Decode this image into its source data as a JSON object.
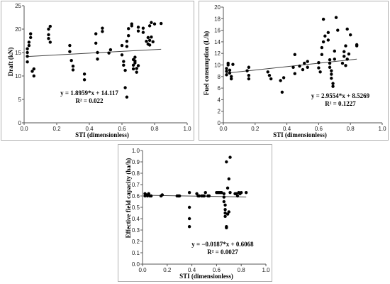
{
  "chart_data": [
    {
      "type": "scatter",
      "title": "",
      "xlabel": "STI (dimensionless)",
      "ylabel": "Draft (kN)",
      "xlim": [
        0,
        1.0
      ],
      "ylim": [
        0,
        25
      ],
      "xticks": [
        "0.0",
        "0.2",
        "0.4",
        "0.6",
        "0.8",
        "1.0"
      ],
      "yticks": [
        "0",
        "5",
        "10",
        "15",
        "20",
        "25"
      ],
      "grid": false,
      "trendline": {
        "slope": 1.8959,
        "intercept": 14.117
      },
      "equation": "y = 1.8959*x + 14.117",
      "r_squared": "R² = 0.022",
      "points": [
        [
          0.02,
          13
        ],
        [
          0.02,
          14.2
        ],
        [
          0.02,
          15
        ],
        [
          0.02,
          15.8
        ],
        [
          0.03,
          16.5
        ],
        [
          0.03,
          17.2
        ],
        [
          0.04,
          18.2
        ],
        [
          0.04,
          19
        ],
        [
          0.05,
          11
        ],
        [
          0.06,
          10
        ],
        [
          0.06,
          11.5
        ],
        [
          0.15,
          18
        ],
        [
          0.15,
          18.8
        ],
        [
          0.15,
          20
        ],
        [
          0.16,
          20.6
        ],
        [
          0.16,
          17.2
        ],
        [
          0.28,
          16.5
        ],
        [
          0.28,
          15.2
        ],
        [
          0.29,
          13.3
        ],
        [
          0.3,
          12.1
        ],
        [
          0.3,
          11.3
        ],
        [
          0.37,
          10.4
        ],
        [
          0.37,
          9.2
        ],
        [
          0.44,
          17
        ],
        [
          0.44,
          19
        ],
        [
          0.45,
          15
        ],
        [
          0.45,
          13.6
        ],
        [
          0.48,
          19.5
        ],
        [
          0.48,
          20.2
        ],
        [
          0.52,
          14.9
        ],
        [
          0.53,
          15.6
        ],
        [
          0.6,
          16.5
        ],
        [
          0.6,
          14.5
        ],
        [
          0.61,
          12.3
        ],
        [
          0.61,
          13.1
        ],
        [
          0.62,
          11.2
        ],
        [
          0.62,
          7.5
        ],
        [
          0.63,
          5.5
        ],
        [
          0.63,
          16.3
        ],
        [
          0.63,
          17.4
        ],
        [
          0.64,
          18.6
        ],
        [
          0.64,
          20.1
        ],
        [
          0.66,
          20.7
        ],
        [
          0.66,
          21.1
        ],
        [
          0.67,
          13.5
        ],
        [
          0.67,
          12.3
        ],
        [
          0.67,
          11.5
        ],
        [
          0.68,
          14
        ],
        [
          0.68,
          13.2
        ],
        [
          0.68,
          12.8
        ],
        [
          0.69,
          11.6
        ],
        [
          0.69,
          10.8
        ],
        [
          0.7,
          20.4
        ],
        [
          0.7,
          19.6
        ],
        [
          0.7,
          12.2
        ],
        [
          0.73,
          19.3
        ],
        [
          0.73,
          20.2
        ],
        [
          0.75,
          17.4
        ],
        [
          0.76,
          16.8
        ],
        [
          0.76,
          18.2
        ],
        [
          0.77,
          20.7
        ],
        [
          0.77,
          17.6
        ],
        [
          0.77,
          16.6
        ],
        [
          0.78,
          21.4
        ],
        [
          0.78,
          18.3
        ],
        [
          0.79,
          17.3
        ],
        [
          0.8,
          21.1
        ],
        [
          0.84,
          21.2
        ]
      ]
    },
    {
      "type": "scatter",
      "title": "",
      "xlabel": "STI (dimensionless)",
      "ylabel": "Fuel consumption  (L/h)",
      "xlim": [
        0,
        1.0
      ],
      "ylim": [
        0,
        20
      ],
      "xticks": [
        "0.0",
        "0.2",
        "0.4",
        "0.6",
        "0.8",
        "1.0"
      ],
      "yticks": [
        "0",
        "2",
        "4",
        "6",
        "8",
        "10",
        "12",
        "14",
        "16",
        "18",
        "20"
      ],
      "grid": false,
      "trendline": {
        "slope": 2.9554,
        "intercept": 8.5269
      },
      "equation": "y = 2.9554*x + 8.5269",
      "r_squared": "R² = 0.1227",
      "points": [
        [
          0.02,
          8.3
        ],
        [
          0.02,
          8.9
        ],
        [
          0.02,
          9.4
        ],
        [
          0.03,
          10
        ],
        [
          0.03,
          10.3
        ],
        [
          0.04,
          9.1
        ],
        [
          0.04,
          8.6
        ],
        [
          0.05,
          7.6
        ],
        [
          0.05,
          8
        ],
        [
          0.06,
          10.1
        ],
        [
          0.15,
          9
        ],
        [
          0.16,
          9.6
        ],
        [
          0.16,
          8.2
        ],
        [
          0.16,
          7.6
        ],
        [
          0.28,
          8.8
        ],
        [
          0.29,
          8.2
        ],
        [
          0.3,
          7.6
        ],
        [
          0.36,
          7.3
        ],
        [
          0.37,
          5.3
        ],
        [
          0.38,
          7.8
        ],
        [
          0.44,
          9.6
        ],
        [
          0.45,
          8.5
        ],
        [
          0.45,
          11.8
        ],
        [
          0.48,
          9.8
        ],
        [
          0.5,
          9.2
        ],
        [
          0.51,
          10.3
        ],
        [
          0.53,
          10.6
        ],
        [
          0.53,
          9.6
        ],
        [
          0.6,
          10.4
        ],
        [
          0.6,
          9.5
        ],
        [
          0.61,
          8.8
        ],
        [
          0.62,
          11.8
        ],
        [
          0.62,
          13
        ],
        [
          0.63,
          14
        ],
        [
          0.63,
          17.9
        ],
        [
          0.64,
          15
        ],
        [
          0.66,
          15.6
        ],
        [
          0.66,
          14.3
        ],
        [
          0.67,
          10.9
        ],
        [
          0.67,
          10.3
        ],
        [
          0.67,
          9.6
        ],
        [
          0.68,
          9
        ],
        [
          0.68,
          8.4
        ],
        [
          0.68,
          7.7
        ],
        [
          0.69,
          6.8
        ],
        [
          0.69,
          6.3
        ],
        [
          0.7,
          11
        ],
        [
          0.7,
          12.4
        ],
        [
          0.71,
          18.2
        ],
        [
          0.72,
          16
        ],
        [
          0.75,
          10.3
        ],
        [
          0.76,
          11.5
        ],
        [
          0.76,
          12.3
        ],
        [
          0.77,
          9.9
        ],
        [
          0.77,
          13.3
        ],
        [
          0.78,
          11
        ],
        [
          0.78,
          16.2
        ],
        [
          0.79,
          11.9
        ],
        [
          0.8,
          15.2
        ],
        [
          0.84,
          13.3
        ],
        [
          0.84,
          13.5
        ]
      ]
    },
    {
      "type": "scatter",
      "title": "",
      "xlabel": "STI (dimensionless)",
      "ylabel": "Effective field capacity (ha/h)",
      "xlim": [
        0,
        1.0
      ],
      "ylim": [
        0,
        1.0
      ],
      "xticks": [
        "0.0",
        "0.2",
        "0.4",
        "0.6",
        "0.8",
        "1.0"
      ],
      "yticks": [
        "0.0",
        "0.1",
        "0.2",
        "0.3",
        "0.4",
        "0.5",
        "0.6",
        "0.7",
        "0.8",
        "0.9",
        "1.0"
      ],
      "grid": false,
      "trendline": {
        "slope": -0.0187,
        "intercept": 0.6068
      },
      "equation": "y = −0.0187*x + 0.6068",
      "r_squared": "R² = 0.0027",
      "points": [
        [
          0.02,
          0.62
        ],
        [
          0.02,
          0.6
        ],
        [
          0.03,
          0.61
        ],
        [
          0.04,
          0.6
        ],
        [
          0.05,
          0.62
        ],
        [
          0.06,
          0.6
        ],
        [
          0.07,
          0.6
        ],
        [
          0.15,
          0.6
        ],
        [
          0.16,
          0.61
        ],
        [
          0.28,
          0.6
        ],
        [
          0.29,
          0.6
        ],
        [
          0.3,
          0.6
        ],
        [
          0.38,
          0.63
        ],
        [
          0.38,
          0.5
        ],
        [
          0.38,
          0.4
        ],
        [
          0.38,
          0.33
        ],
        [
          0.44,
          0.62
        ],
        [
          0.45,
          0.6
        ],
        [
          0.46,
          0.6
        ],
        [
          0.48,
          0.6
        ],
        [
          0.49,
          0.6
        ],
        [
          0.5,
          0.6
        ],
        [
          0.51,
          0.63
        ],
        [
          0.53,
          0.6
        ],
        [
          0.54,
          0.6
        ],
        [
          0.6,
          0.63
        ],
        [
          0.61,
          0.63
        ],
        [
          0.62,
          0.63
        ],
        [
          0.63,
          0.63
        ],
        [
          0.64,
          0.63
        ],
        [
          0.66,
          0.62
        ],
        [
          0.66,
          0.59
        ],
        [
          0.66,
          0.55
        ],
        [
          0.67,
          0.52
        ],
        [
          0.67,
          0.48
        ],
        [
          0.67,
          0.45
        ],
        [
          0.67,
          0.42
        ],
        [
          0.68,
          0.33
        ],
        [
          0.68,
          0.32
        ],
        [
          0.68,
          0.9
        ],
        [
          0.69,
          0.67
        ],
        [
          0.69,
          0.44
        ],
        [
          0.7,
          0.75
        ],
        [
          0.7,
          0.46
        ],
        [
          0.71,
          0.94
        ],
        [
          0.71,
          0.63
        ],
        [
          0.75,
          0.62
        ],
        [
          0.76,
          0.62
        ],
        [
          0.77,
          0.6
        ],
        [
          0.78,
          0.63
        ],
        [
          0.79,
          0.62
        ],
        [
          0.8,
          0.63
        ],
        [
          0.84,
          0.63
        ]
      ]
    }
  ]
}
